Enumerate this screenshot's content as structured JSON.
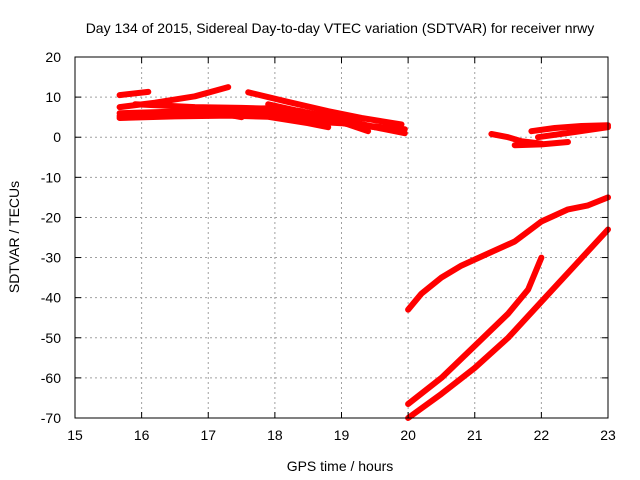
{
  "chart_data": {
    "type": "line",
    "title": "Day 134 of 2015, Sidereal Day-to-day VTEC variation (SDTVAR) for receiver nrwy",
    "xlabel": "GPS time / hours",
    "ylabel": "SDTVAR / TECUs",
    "xlim": [
      15,
      23
    ],
    "ylim": [
      -70,
      20
    ],
    "xticks": [
      "15",
      "16",
      "17",
      "18",
      "19",
      "20",
      "21",
      "22",
      "23"
    ],
    "yticks": [
      "20",
      "10",
      "0",
      "-10",
      "-20",
      "-30",
      "-40",
      "-50",
      "-60",
      "-70"
    ],
    "grid": true,
    "color": "#ff0000",
    "series": [
      {
        "x": [
          15.67,
          16.1
        ],
        "y": [
          10.5,
          11.3
        ]
      },
      {
        "x": [
          15.67,
          16.2,
          16.8,
          17.3
        ],
        "y": [
          7.5,
          8.6,
          10.2,
          12.5
        ]
      },
      {
        "x": [
          15.67,
          16.5,
          17.2,
          17.9,
          18.4
        ],
        "y": [
          6.0,
          6.4,
          6.8,
          7.2,
          6.5
        ]
      },
      {
        "x": [
          15.67,
          16.5,
          17.3,
          18.0,
          18.6,
          19.1
        ],
        "y": [
          5.3,
          5.6,
          6.0,
          5.8,
          4.8,
          3.5
        ]
      },
      {
        "x": [
          15.67,
          16.5,
          17.3,
          17.9,
          18.5,
          18.8
        ],
        "y": [
          4.8,
          5.2,
          5.4,
          5.1,
          3.5,
          2.5
        ]
      },
      {
        "x": [
          15.9,
          16.8,
          17.5,
          18.2,
          18.7,
          19.0
        ],
        "y": [
          8.2,
          7.5,
          7.3,
          7.0,
          5.5,
          4.5
        ]
      },
      {
        "x": [
          16.6,
          17.2,
          17.5
        ],
        "y": [
          5.4,
          5.9,
          5.0
        ]
      },
      {
        "x": [
          17.6,
          18.2,
          18.8,
          19.3,
          19.9
        ],
        "y": [
          11.2,
          8.8,
          6.5,
          4.8,
          3.2
        ]
      },
      {
        "x": [
          17.9,
          18.5,
          19.0,
          19.5
        ],
        "y": [
          8.2,
          6.0,
          4.5,
          2.5
        ]
      },
      {
        "x": [
          18.2,
          18.6,
          19.1,
          19.4
        ],
        "y": [
          6.8,
          5.5,
          3.2,
          1.5
        ]
      },
      {
        "x": [
          18.5,
          19.0,
          19.5,
          19.95
        ],
        "y": [
          4.0,
          3.5,
          2.5,
          1.0
        ]
      },
      {
        "x": [
          18.9,
          19.3,
          19.95
        ],
        "y": [
          5.0,
          3.0,
          2.0
        ]
      },
      {
        "x": [
          21.25,
          21.5,
          21.7,
          22.0
        ],
        "y": [
          0.8,
          0.0,
          -1.0,
          -1.6
        ]
      },
      {
        "x": [
          21.6,
          22.0,
          22.4
        ],
        "y": [
          -2.0,
          -1.8,
          -1.2
        ]
      },
      {
        "x": [
          21.85,
          22.2,
          22.6,
          23.0
        ],
        "y": [
          1.5,
          2.3,
          2.8,
          3.0
        ]
      },
      {
        "x": [
          21.95,
          22.5,
          23.0
        ],
        "y": [
          0.0,
          1.3,
          2.5
        ]
      },
      {
        "x": [
          20.0,
          20.2,
          20.5,
          20.8,
          21.2,
          21.6,
          22.0,
          22.4,
          22.7,
          23.0
        ],
        "y": [
          -43,
          -39,
          -35,
          -32,
          -29,
          -26,
          -21,
          -18,
          -17,
          -15
        ]
      },
      {
        "x": [
          20.0,
          20.5,
          21.0,
          21.5,
          21.8,
          22.0
        ],
        "y": [
          -66.5,
          -60,
          -52,
          -44,
          -38,
          -30
        ]
      },
      {
        "x": [
          20.0,
          20.5,
          21.0,
          21.5,
          22.0,
          22.5,
          23.0
        ],
        "y": [
          -70,
          -64,
          -57.5,
          -50,
          -41,
          -32,
          -23
        ]
      }
    ]
  }
}
